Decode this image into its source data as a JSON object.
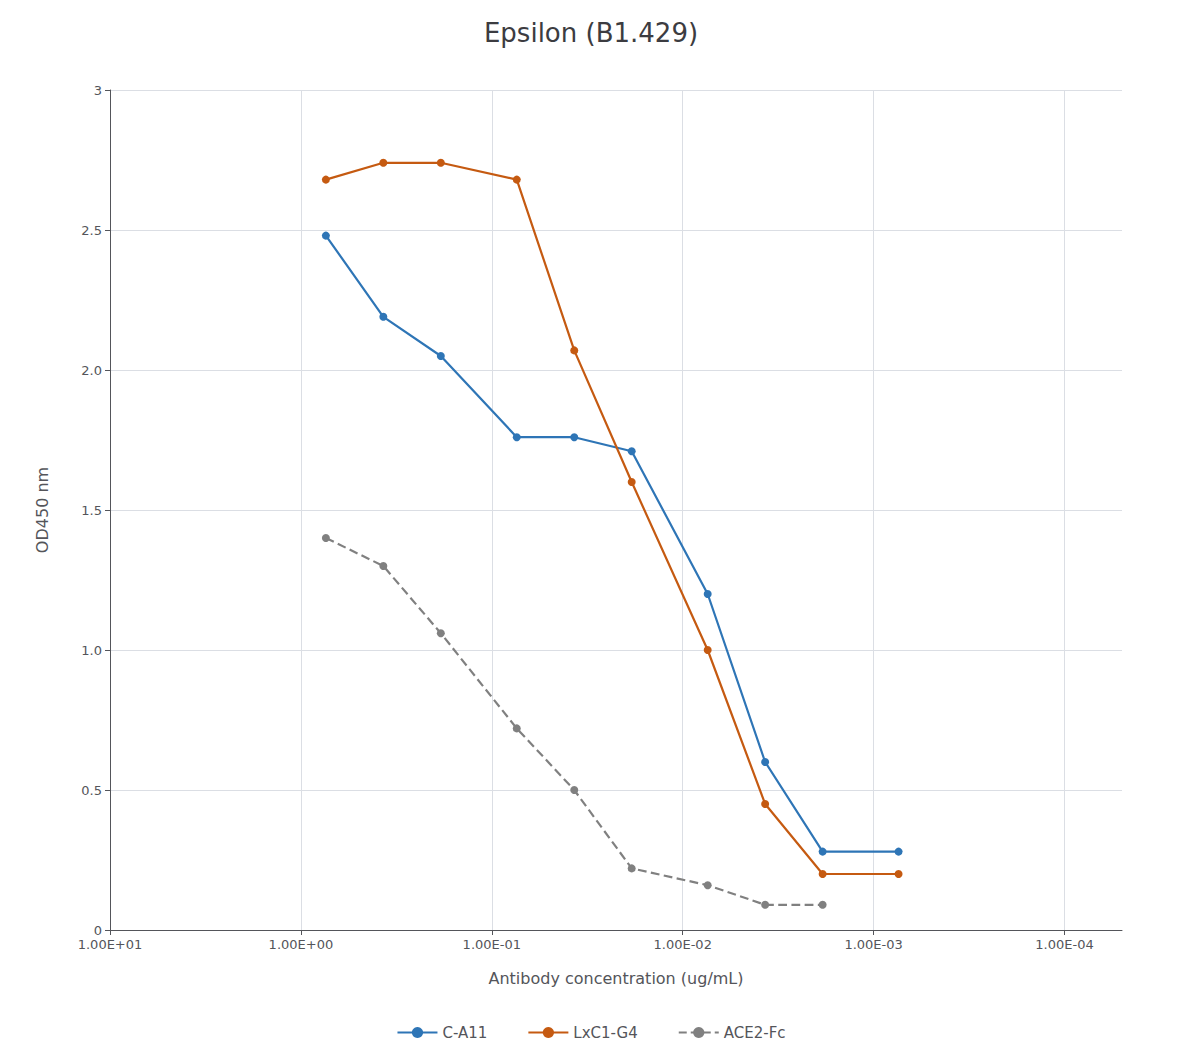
{
  "chart_data": {
    "type": "line",
    "title": "Epsilon (B1.429)",
    "xlabel": "Antibody concentration (ug/mL)",
    "ylabel": "OD450 nm",
    "series": [
      {
        "name": "C-A11",
        "color": "#2E75B6",
        "line_style": "solid",
        "marker": "circle",
        "x": [
          0.74,
          0.37,
          0.185,
          0.074,
          0.037,
          0.0185,
          0.0074,
          0.0037,
          0.00185,
          0.00074
        ],
        "values": [
          2.48,
          2.19,
          2.05,
          1.76,
          1.76,
          1.71,
          1.2,
          0.6,
          0.28,
          0.28
        ]
      },
      {
        "name": "LxC1-G4",
        "color": "#C55A11",
        "line_style": "solid",
        "marker": "circle",
        "x": [
          0.74,
          0.37,
          0.185,
          0.074,
          0.037,
          0.0185,
          0.0074,
          0.0037,
          0.00185,
          0.00074
        ],
        "values": [
          2.68,
          2.74,
          2.74,
          2.68,
          2.07,
          1.6,
          1.0,
          0.45,
          0.2,
          0.2
        ]
      },
      {
        "name": "ACE2-Fc",
        "color": "#808080",
        "line_style": "dashed",
        "marker": "circle",
        "x": [
          0.74,
          0.37,
          0.185,
          0.074,
          0.037,
          0.0185,
          0.0074,
          0.0037,
          0.00185
        ],
        "values": [
          1.4,
          1.3,
          1.06,
          0.72,
          0.5,
          0.22,
          0.16,
          0.09,
          0.09
        ]
      }
    ],
    "log": "x",
    "xlim": [
      10.0,
      5e-05
    ],
    "xticks": [
      {
        "value": 10,
        "label": "1.00E+01"
      },
      {
        "value": 1,
        "label": "1.00E+00"
      },
      {
        "value": 0.1,
        "label": "1.00E-01"
      },
      {
        "value": 0.01,
        "label": "1.00E-02"
      },
      {
        "value": 0.001,
        "label": "1.00E-03"
      },
      {
        "value": 0.0001,
        "label": "1.00E-04"
      }
    ],
    "ylim": [
      0,
      3.0
    ],
    "yticks": [
      0,
      0.5,
      {
        "value": 1.0,
        "label": "1.0"
      },
      1.5,
      {
        "value": 2.0,
        "label": "2.0"
      },
      2.5,
      3
    ],
    "grid": true,
    "legend": "bottom"
  }
}
